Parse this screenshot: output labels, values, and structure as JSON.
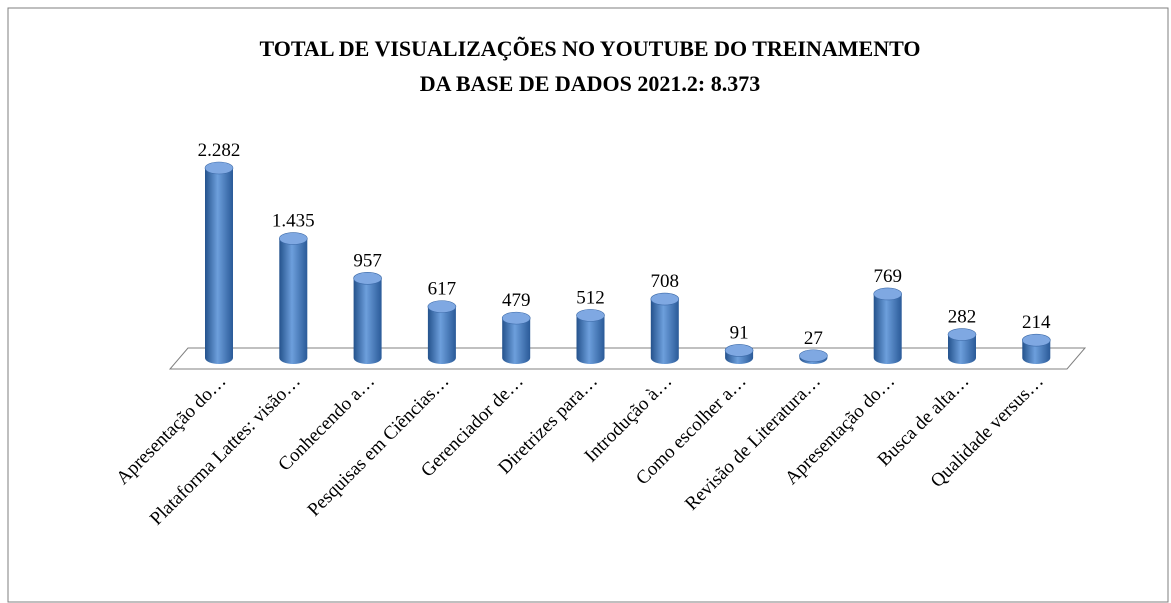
{
  "chart_data": {
    "type": "bar",
    "title": [
      "TOTAL DE VISUALIZAÇÕES NO YOUTUBE DO TREINAMENTO",
      "DA BASE DE DADOS 2021.2: 8.373"
    ],
    "categories": [
      "Apresentação do…",
      "Plataforma Lattes: visão…",
      "Conhecendo a…",
      "Pesquisas em Ciências…",
      "Gerenciador de…",
      "Diretrizes para…",
      "Introdução à…",
      "Como escolher a…",
      "Revisão de Literatura…",
      "Apresentação do…",
      "Busca de alta…",
      "Qualidade versus…"
    ],
    "values": [
      2282,
      1435,
      957,
      617,
      479,
      512,
      708,
      91,
      27,
      769,
      282,
      214
    ],
    "value_labels": [
      "2.282",
      "1.435",
      "957",
      "617",
      "479",
      "512",
      "708",
      "91",
      "27",
      "769",
      "282",
      "214"
    ],
    "color": "#4f81bd"
  }
}
